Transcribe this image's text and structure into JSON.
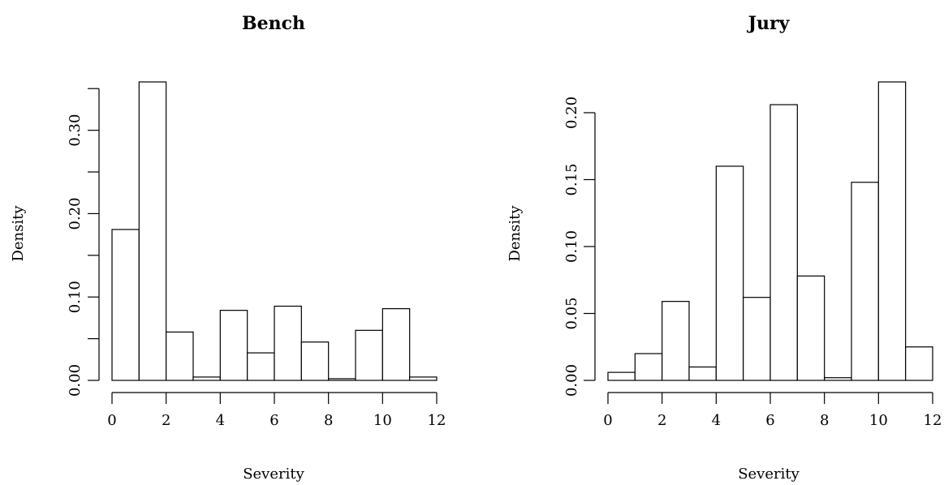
{
  "chart_data": [
    {
      "type": "histogram",
      "title": "Bench",
      "xlabel": "Severity",
      "ylabel": "Density",
      "bin_edges": [
        0,
        1,
        2,
        3,
        4,
        5,
        6,
        7,
        8,
        9,
        10,
        11,
        12
      ],
      "values": [
        0.181,
        0.358,
        0.058,
        0.004,
        0.084,
        0.033,
        0.089,
        0.046,
        0.002,
        0.06,
        0.086,
        0.004
      ],
      "xticks": [
        0,
        2,
        4,
        6,
        8,
        10,
        12
      ],
      "xtick_labels": [
        "0",
        "2",
        "4",
        "6",
        "8",
        "10",
        "12"
      ],
      "yticks": [
        0.0,
        0.05,
        0.1,
        0.15,
        0.2,
        0.25,
        0.3,
        0.35
      ],
      "ytick_labels": [
        "0.00",
        "",
        "0.10",
        "",
        "0.20",
        "",
        "0.30",
        ""
      ],
      "xlim": [
        0,
        12
      ],
      "ylim": [
        0,
        0.358
      ],
      "grid": false
    },
    {
      "type": "histogram",
      "title": "Jury",
      "xlabel": "Severity",
      "ylabel": "Density",
      "bin_edges": [
        0,
        1,
        2,
        3,
        4,
        5,
        6,
        7,
        8,
        9,
        10,
        11,
        12
      ],
      "values": [
        0.006,
        0.02,
        0.059,
        0.01,
        0.16,
        0.062,
        0.206,
        0.078,
        0.002,
        0.148,
        0.223,
        0.025
      ],
      "xticks": [
        0,
        2,
        4,
        6,
        8,
        10,
        12
      ],
      "xtick_labels": [
        "0",
        "2",
        "4",
        "6",
        "8",
        "10",
        "12"
      ],
      "yticks": [
        0.0,
        0.05,
        0.1,
        0.15,
        0.2
      ],
      "ytick_labels": [
        "0.00",
        "0.05",
        "0.10",
        "0.15",
        "0.20"
      ],
      "xlim": [
        0,
        12
      ],
      "ylim": [
        0,
        0.223
      ],
      "grid": false
    }
  ]
}
